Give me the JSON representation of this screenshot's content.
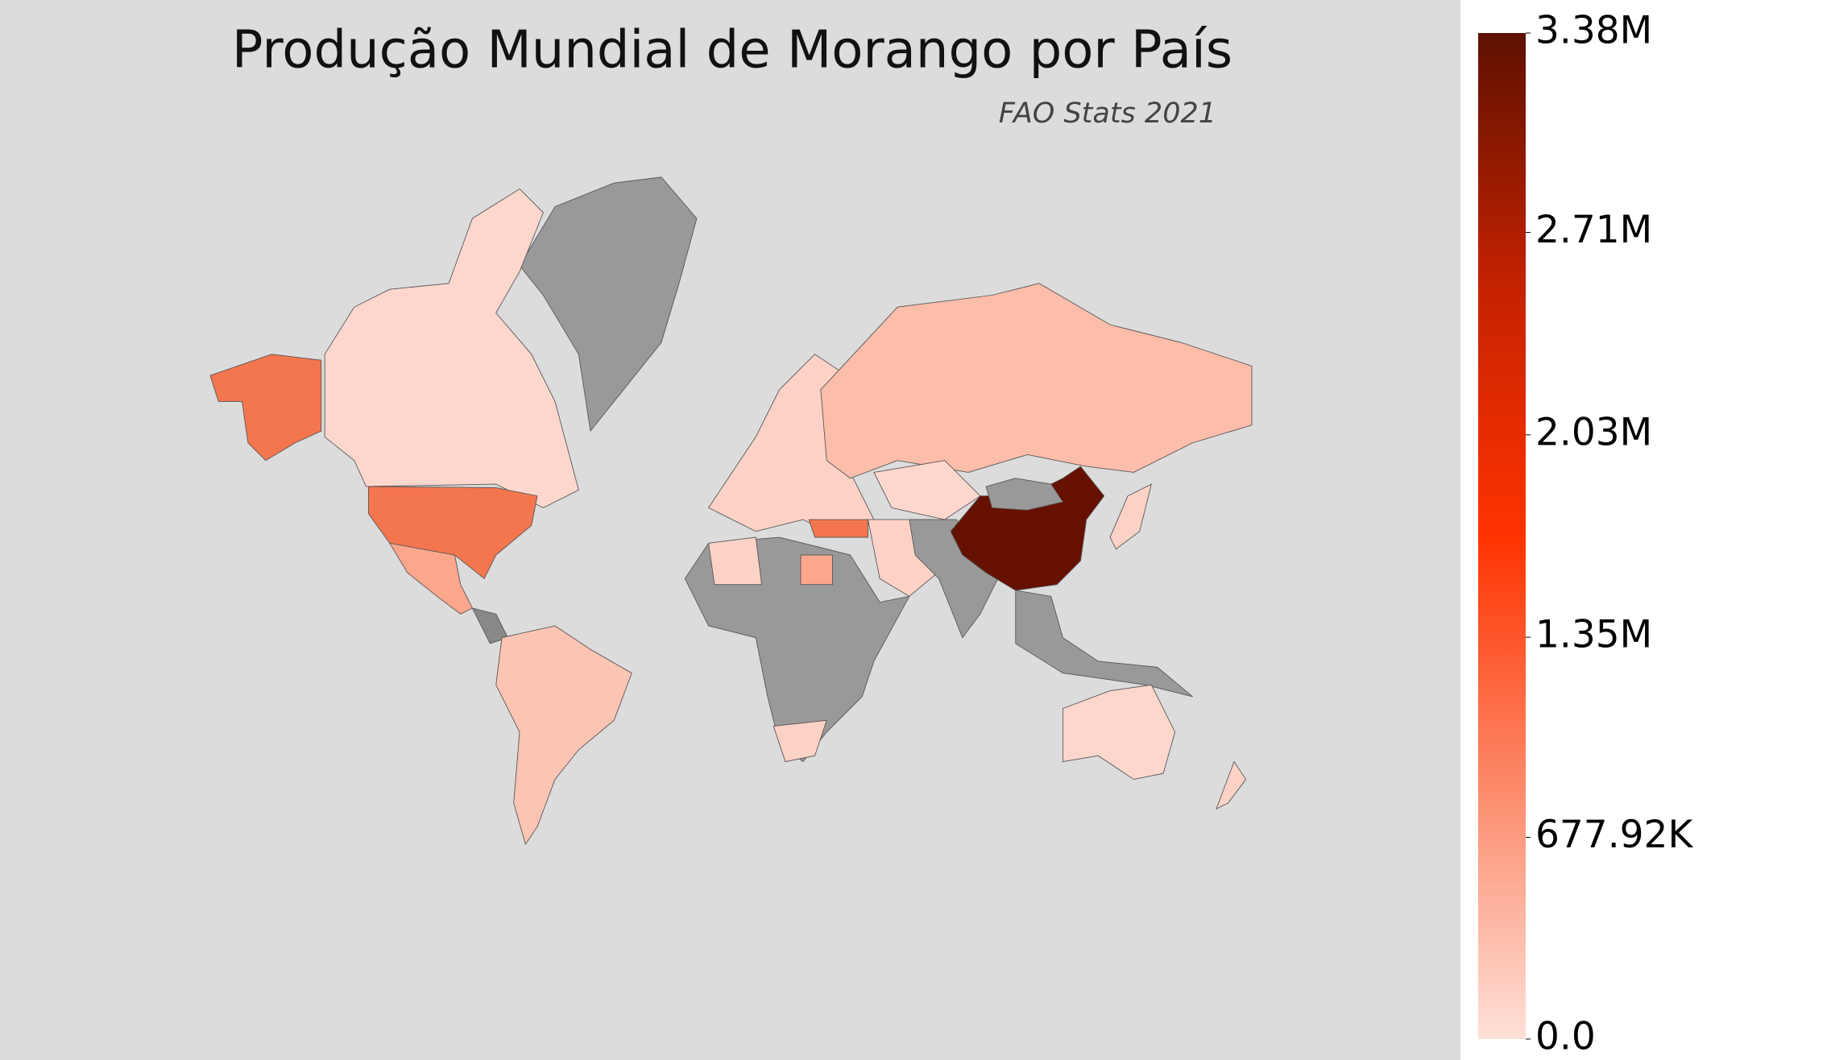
{
  "chart_data": {
    "type": "choropleth",
    "title": "Produção Mundial de Morango por País",
    "subtitle": "FAO Stats 2021",
    "colorbar": {
      "lim": [
        0,
        3380000
      ],
      "colors": [
        "#fee0d8",
        "#fc8a6a",
        "#ff3300",
        "#c42200",
        "#5e1100"
      ],
      "ticks": [
        {
          "value": 0,
          "label": "0.0"
        },
        {
          "value": 677920,
          "label": "677.92K"
        },
        {
          "value": 1350000,
          "label": "1.35M"
        },
        {
          "value": 2030000,
          "label": "2.03M"
        },
        {
          "value": 2710000,
          "label": "2.71M"
        },
        {
          "value": 3380000,
          "label": "3.38M"
        }
      ]
    }
  }
}
